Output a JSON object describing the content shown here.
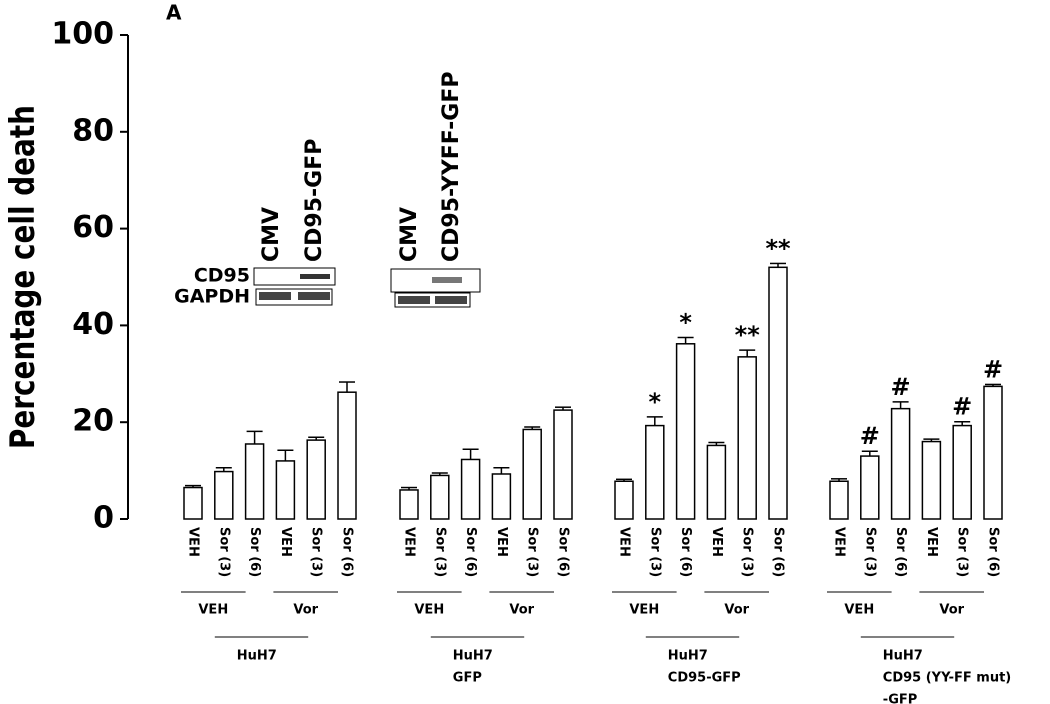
{
  "chart_data": {
    "type": "bar",
    "panel_label": "A",
    "ylabel": "Percentage cell death",
    "ylim": [
      0,
      100
    ],
    "yticks": [
      0,
      20,
      40,
      60,
      80,
      100
    ],
    "color": "#ffffff",
    "groups": [
      {
        "name": [
          "HuH7"
        ],
        "treatments": [
          "VEH",
          "Vor"
        ],
        "categories": [
          "VEH",
          "Sor (3)",
          "Sor (6)",
          "VEH",
          "Sor (3)",
          "Sor (6)"
        ],
        "values": [
          6.5,
          9.8,
          15.5,
          12,
          16.3,
          26.2
        ],
        "errors": [
          0.4,
          0.8,
          2.6,
          2.2,
          0.6,
          2.1
        ],
        "markers": [
          null,
          null,
          null,
          null,
          null,
          null
        ]
      },
      {
        "name": [
          "HuH7",
          "GFP"
        ],
        "treatments": [
          "VEH",
          "Vor"
        ],
        "categories": [
          "VEH",
          "Sor (3)",
          "Sor (6)",
          "VEH",
          "Sor (3)",
          "Sor (6)"
        ],
        "values": [
          6,
          9,
          12.3,
          9.3,
          18.5,
          22.5
        ],
        "errors": [
          0.5,
          0.5,
          2.1,
          1.3,
          0.5,
          0.6
        ],
        "markers": [
          null,
          null,
          null,
          null,
          null,
          null
        ]
      },
      {
        "name": [
          "HuH7",
          "CD95-GFP"
        ],
        "treatments": [
          "VEH",
          "Vor"
        ],
        "categories": [
          "VEH",
          "Sor (3)",
          "Sor (6)",
          "VEH",
          "Sor (3)",
          "Sor (6)"
        ],
        "values": [
          7.8,
          19.3,
          36.2,
          15.2,
          33.5,
          52
        ],
        "errors": [
          0.4,
          1.8,
          1.3,
          0.6,
          1.4,
          0.8
        ],
        "markers": [
          null,
          "*",
          "*",
          null,
          "**",
          "**"
        ]
      },
      {
        "name": [
          "HuH7",
          "CD95 (YY-FF mut)",
          "-GFP"
        ],
        "treatments": [
          "VEH",
          "Vor"
        ],
        "categories": [
          "VEH",
          "Sor (3)",
          "Sor (6)",
          "VEH",
          "Sor (3)",
          "Sor (6)"
        ],
        "values": [
          7.8,
          13,
          22.8,
          16,
          19.3,
          27.4
        ],
        "errors": [
          0.5,
          1,
          1.4,
          0.5,
          0.8,
          0.4
        ],
        "markers": [
          null,
          "#",
          "#",
          null,
          "#",
          "#"
        ]
      }
    ],
    "insets": [
      {
        "lanes": [
          "CMV",
          "CD95-GFP"
        ],
        "rows": [
          "CD95",
          "GAPDH"
        ]
      },
      {
        "lanes": [
          "CMV",
          "CD95-YYFF-GFP"
        ]
      }
    ]
  }
}
